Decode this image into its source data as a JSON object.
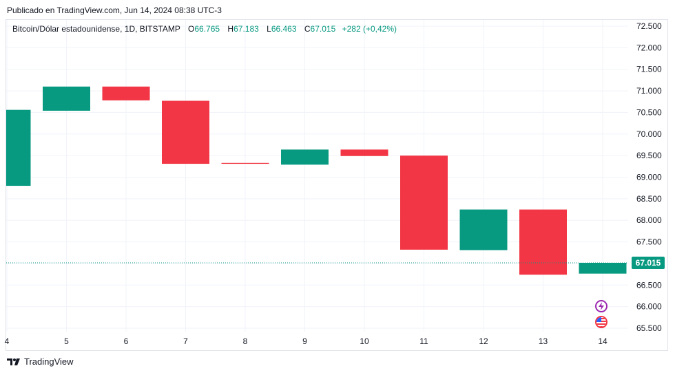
{
  "header": {
    "published": "Publicado en TradingView.com, Jun 14, 2024 08:38 UTC-3"
  },
  "legend": {
    "symbol": "Bitcoin/Dólar estadounidense, 1D, BITSTAMP",
    "o_label": "O",
    "o_value": "66.765",
    "h_label": "H",
    "h_value": "67.183",
    "l_label": "L",
    "l_value": "66.463",
    "c_label": "C",
    "c_value": "67.015",
    "change": "+282 (+0,42%)"
  },
  "footer": {
    "brand": "TradingView"
  },
  "colors": {
    "up": "#089981",
    "down": "#f23645",
    "grid": "#f0f3fa",
    "axis_text": "#131722",
    "price_line": "#089981"
  },
  "icons": {
    "event_1": "flash-icon",
    "event_2": "us-flag-icon"
  },
  "chart_data": {
    "type": "candlestick-bodies",
    "x_tick_labels": [
      "4",
      "5",
      "6",
      "7",
      "8",
      "9",
      "10",
      "11",
      "12",
      "13",
      "14"
    ],
    "y_tick_labels": [
      "72.500",
      "72.000",
      "71.500",
      "71.000",
      "70.500",
      "70.000",
      "69.500",
      "69.000",
      "68.500",
      "68.000",
      "67.500",
      "67.000",
      "66.500",
      "66.000",
      "65.500"
    ],
    "ylim": [
      65350,
      72600
    ],
    "current_price": 67015,
    "current_price_label": "67.015",
    "grid": true,
    "candles": [
      {
        "x": "4",
        "open": 68800,
        "close": 70560
      },
      {
        "x": "5",
        "open": 70540,
        "close": 71100
      },
      {
        "x": "6",
        "open": 71100,
        "close": 70780
      },
      {
        "x": "7",
        "open": 70770,
        "close": 69310
      },
      {
        "x": "8",
        "open": 69330,
        "close": 69310
      },
      {
        "x": "9",
        "open": 69290,
        "close": 69640
      },
      {
        "x": "10",
        "open": 69640,
        "close": 69490
      },
      {
        "x": "11",
        "open": 69500,
        "close": 67320
      },
      {
        "x": "12",
        "open": 67310,
        "close": 68250
      },
      {
        "x": "13",
        "open": 68250,
        "close": 66740
      },
      {
        "x": "14",
        "open": 66765,
        "close": 67015
      }
    ]
  }
}
